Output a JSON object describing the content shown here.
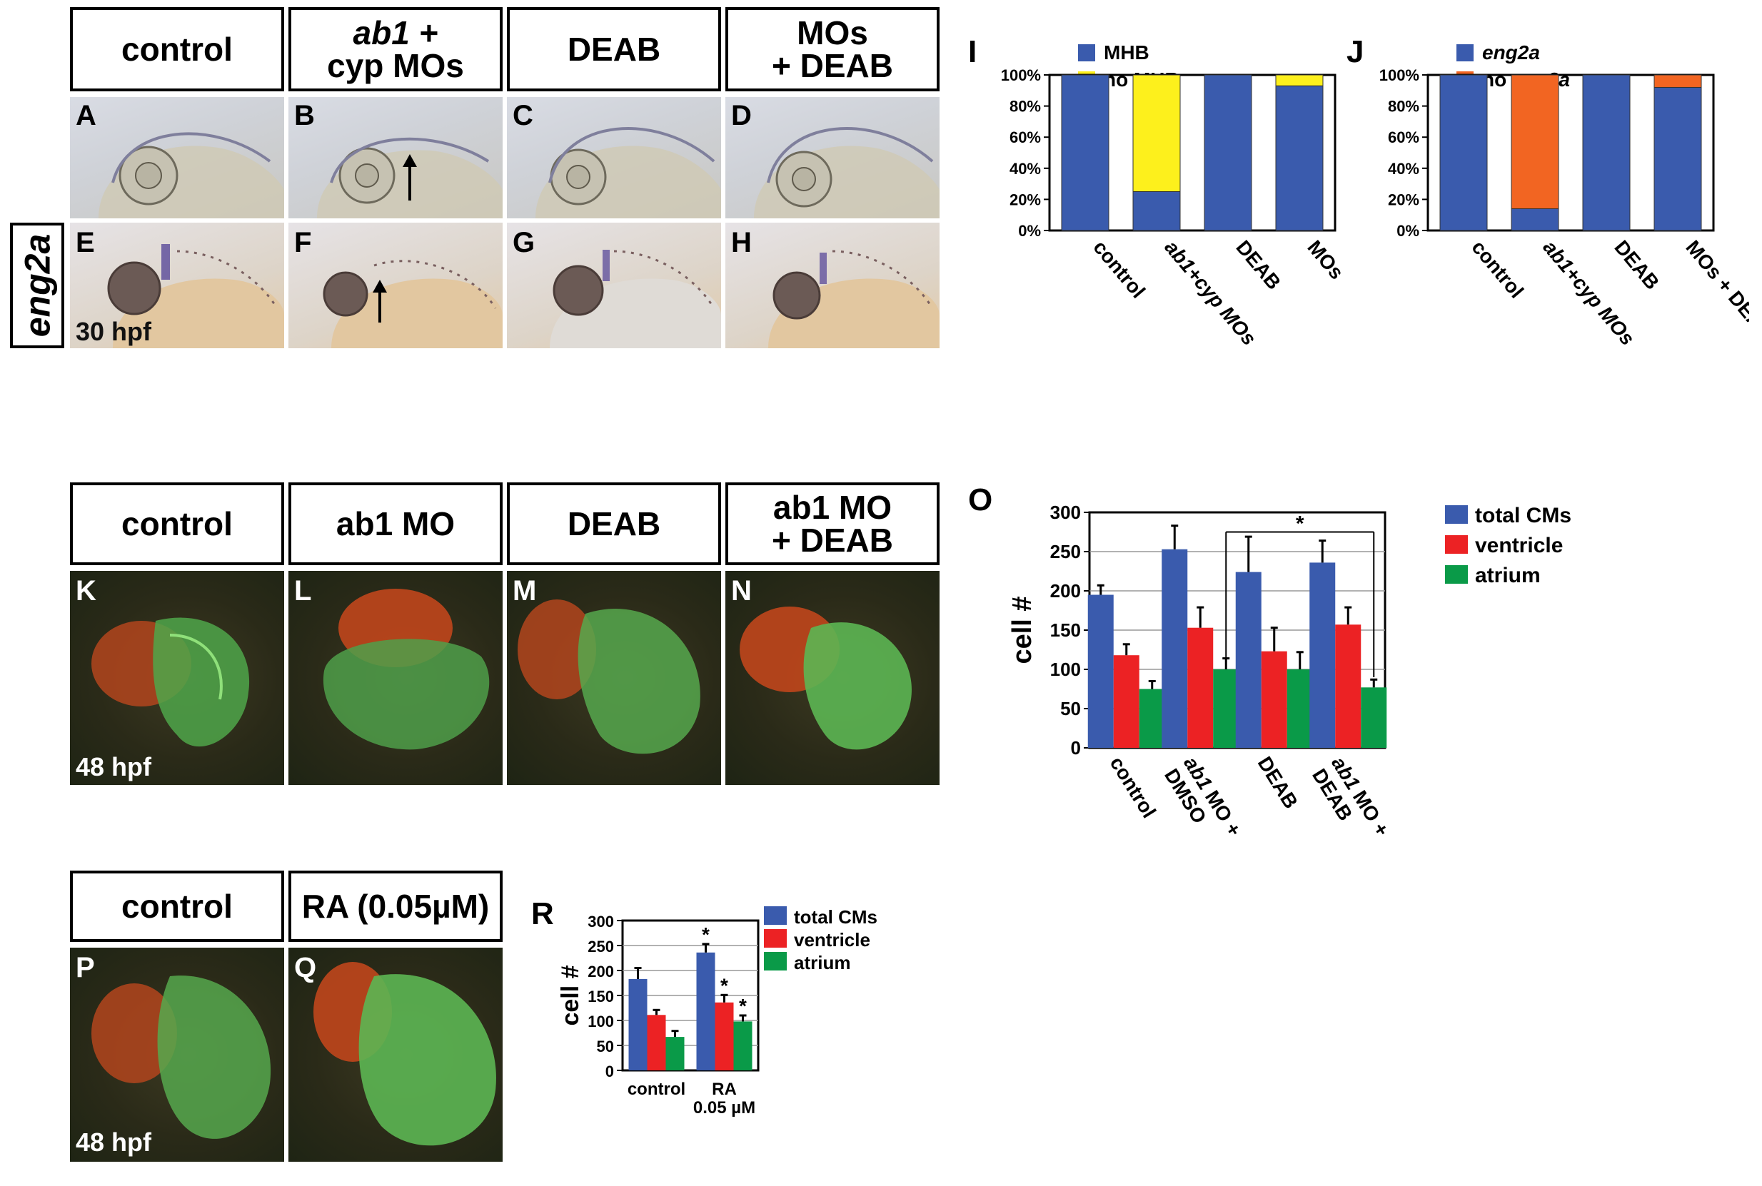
{
  "row1": {
    "headers": [
      {
        "line1": "control",
        "line2": ""
      },
      {
        "line1": "ab1 +",
        "line2": "cyp MOs"
      },
      {
        "line1": "DEAB",
        "line2": ""
      },
      {
        "line1": "MOs",
        "line2": "+ DEAB"
      }
    ],
    "panels_top": [
      "A",
      "B",
      "C",
      "D"
    ],
    "panels_bottom": [
      "E",
      "F",
      "G",
      "H"
    ],
    "side_label": "eng2a",
    "stage": "30 hpf"
  },
  "row2": {
    "headers": [
      {
        "line1": "control",
        "line2": ""
      },
      {
        "line1": "ab1 MO",
        "line2": ""
      },
      {
        "line1": "DEAB",
        "line2": ""
      },
      {
        "line1": "ab1 MO",
        "line2": "+ DEAB"
      }
    ],
    "panels": [
      "K",
      "L",
      "M",
      "N"
    ],
    "stage": "48 hpf"
  },
  "row3": {
    "headers": [
      "control",
      "RA (0.05µM)"
    ],
    "panels": [
      "P",
      "Q"
    ],
    "stage": "48 hpf"
  },
  "panel_letters": {
    "I": "I",
    "J": "J",
    "O": "O",
    "R": "R"
  },
  "chart_data": [
    {
      "panel": "I",
      "type": "bar",
      "stacked": true,
      "categories": [
        "control",
        "ab1+cyp MOs",
        "DEAB",
        "MOs + DEAB"
      ],
      "series": [
        {
          "name": "MHB",
          "color": "#3a5bad",
          "values": [
            100,
            25,
            100,
            93
          ]
        },
        {
          "name": "no MHB",
          "color": "#fdf01c",
          "values": [
            0,
            75,
            0,
            7
          ]
        }
      ],
      "yticks": [
        "0%",
        "20%",
        "40%",
        "60%",
        "80%",
        "100%"
      ],
      "ylim": [
        0,
        100
      ]
    },
    {
      "panel": "J",
      "type": "bar",
      "stacked": true,
      "categories": [
        "control",
        "ab1+cyp MOs",
        "DEAB",
        "MOs + DEAB"
      ],
      "series": [
        {
          "name": "eng2a",
          "color": "#3a5bad",
          "values": [
            100,
            14,
            100,
            92
          ]
        },
        {
          "name": "no eng2a",
          "color": "#f26522",
          "values": [
            0,
            86,
            0,
            8
          ]
        }
      ],
      "yticks": [
        "0%",
        "20%",
        "40%",
        "60%",
        "80%",
        "100%"
      ],
      "ylim": [
        0,
        100
      ]
    },
    {
      "panel": "O",
      "type": "bar",
      "ylabel": "cell #",
      "categories": [
        "control",
        "ab1 MO + DMSO",
        "DEAB",
        "ab1 MO + DEAB"
      ],
      "series": [
        {
          "name": "total CMs",
          "color": "#3a5bad",
          "values": [
            195,
            253,
            224,
            236
          ],
          "errors": [
            12,
            30,
            45,
            28
          ]
        },
        {
          "name": "ventricle",
          "color": "#ec2224",
          "values": [
            118,
            153,
            123,
            157
          ],
          "errors": [
            14,
            26,
            30,
            22
          ]
        },
        {
          "name": "atrium",
          "color": "#0a9a48",
          "values": [
            75,
            100,
            100,
            77
          ],
          "errors": [
            10,
            14,
            22,
            10
          ]
        }
      ],
      "yticks": [
        "0",
        "50",
        "100",
        "150",
        "200",
        "250",
        "300"
      ],
      "ylim": [
        0,
        300
      ],
      "annotations": [
        "*"
      ]
    },
    {
      "panel": "R",
      "type": "bar",
      "ylabel": "cell #",
      "categories": [
        "control",
        "RA 0.05 µM"
      ],
      "series": [
        {
          "name": "total CMs",
          "color": "#3a5bad",
          "values": [
            183,
            236
          ],
          "errors": [
            22,
            17
          ]
        },
        {
          "name": "ventricle",
          "color": "#ec2224",
          "values": [
            111,
            136
          ],
          "errors": [
            10,
            15
          ]
        },
        {
          "name": "atrium",
          "color": "#0a9a48",
          "values": [
            67,
            98
          ],
          "errors": [
            12,
            12
          ]
        }
      ],
      "yticks": [
        "0",
        "50",
        "100",
        "150",
        "200",
        "250",
        "300"
      ],
      "ylim": [
        0,
        300
      ],
      "annotations": [
        "*",
        "*",
        "*"
      ]
    }
  ]
}
